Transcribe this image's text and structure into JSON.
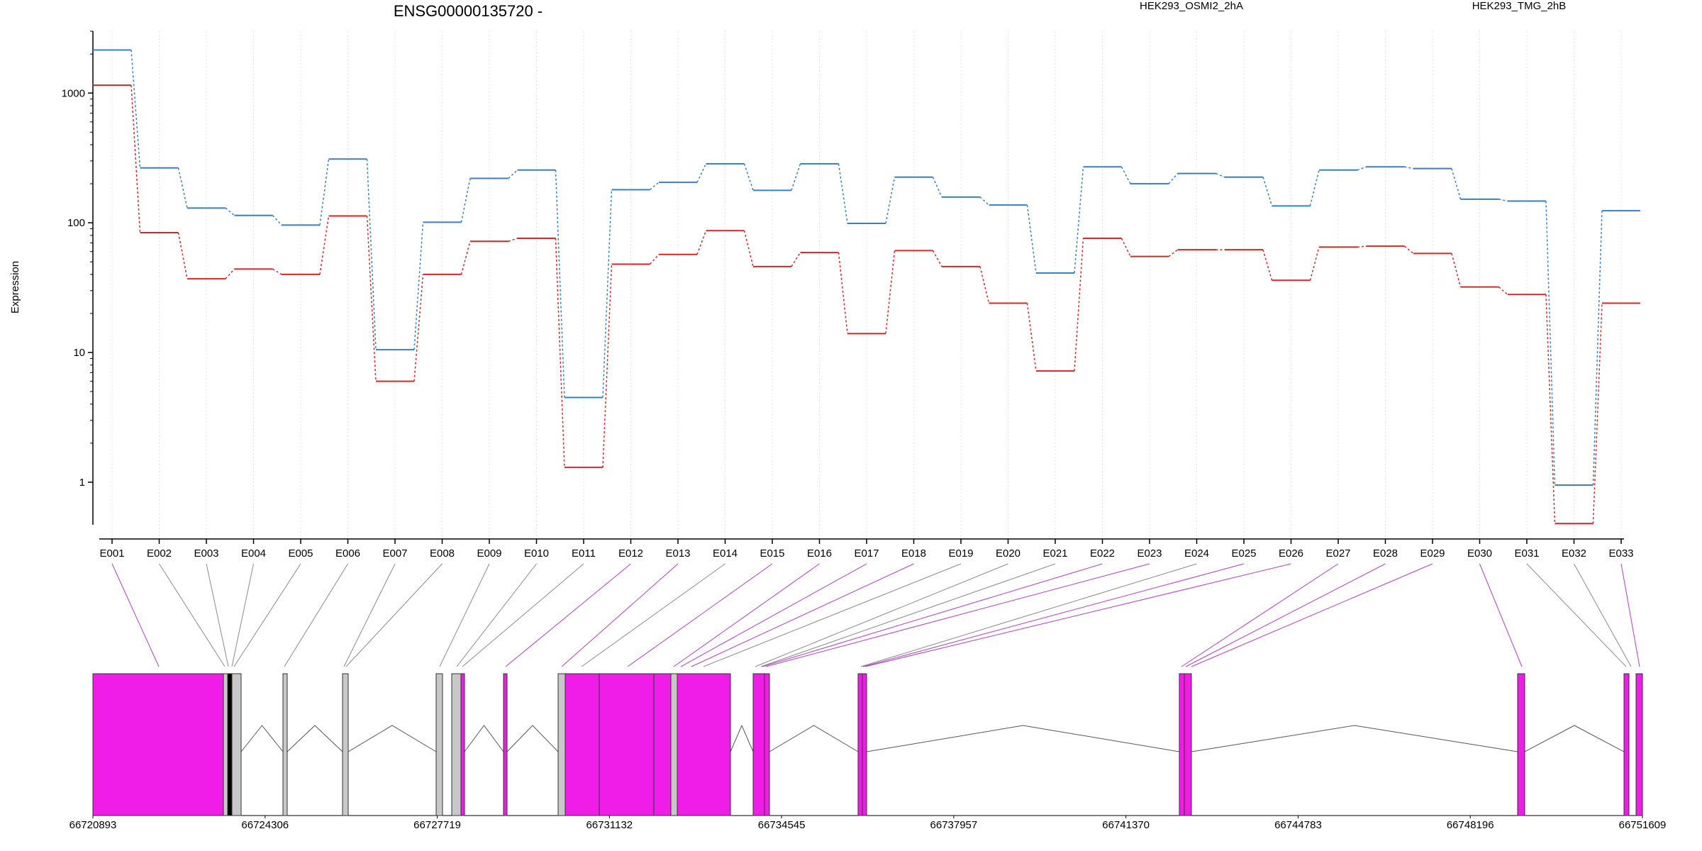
{
  "chart_data": {
    "type": "line",
    "title": "ENSG00000135720 -",
    "ylabel": "Expression",
    "yscale": "log",
    "ylim": [
      0.5,
      3000
    ],
    "yticks": [
      {
        "value": 1,
        "label": "1"
      },
      {
        "value": 10,
        "label": "10"
      },
      {
        "value": 100,
        "label": "100"
      },
      {
        "value": 1000,
        "label": "1000"
      }
    ],
    "grid": "vertical dotted at exon ticks",
    "legend": "top",
    "categories": [
      "E001",
      "E002",
      "E003",
      "E004",
      "E005",
      "E006",
      "E007",
      "E008",
      "E009",
      "E010",
      "E011",
      "E012",
      "E013",
      "E014",
      "E015",
      "E016",
      "E017",
      "E018",
      "E019",
      "E020",
      "E021",
      "E022",
      "E023",
      "E024",
      "E025",
      "E026",
      "E027",
      "E028",
      "E029",
      "E030",
      "E031",
      "E032",
      "E033"
    ],
    "series": [
      {
        "name": "HEK293_OSMI2_2hA",
        "color": "#d62728",
        "values": [
          1150,
          84,
          37,
          44,
          40,
          113,
          6,
          40,
          72,
          76,
          1.3,
          48,
          57,
          87,
          46,
          59,
          14,
          61,
          46,
          24,
          7.2,
          76,
          55,
          62,
          62,
          36,
          65,
          66,
          58,
          32,
          28,
          0.48,
          24
        ]
      },
      {
        "name": "HEK293_TMG_2hB",
        "color": "#3a7fc1",
        "values": [
          2150,
          265,
          130,
          114,
          96,
          310,
          10.5,
          101,
          220,
          255,
          4.5,
          180,
          205,
          285,
          178,
          285,
          99,
          225,
          158,
          137,
          41,
          270,
          200,
          240,
          225,
          135,
          255,
          270,
          262,
          152,
          147,
          0.95,
          124
        ]
      }
    ],
    "gene_model": {
      "coord_ticks": [
        "66720893",
        "66724306",
        "66727719",
        "66731132",
        "66734545",
        "66737957",
        "66741370",
        "66744783",
        "66748196",
        "66751609"
      ],
      "exon_color": "#f01de8",
      "intron_color": "#c8c8c8"
    }
  }
}
